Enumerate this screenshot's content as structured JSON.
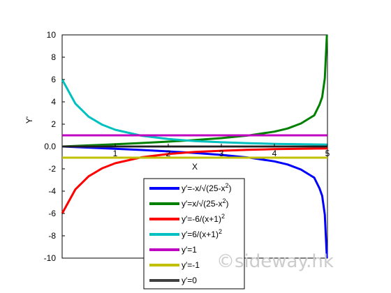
{
  "chart_data": {
    "type": "line",
    "title": "",
    "xlabel": "X",
    "ylabel": "Y'",
    "xlim": [
      0,
      5
    ],
    "ylim": [
      -10,
      10
    ],
    "x_ticks": [
      1,
      2,
      3,
      4,
      5
    ],
    "y_ticks": [
      10,
      8,
      6,
      4,
      2,
      0.0,
      -2,
      -4,
      -6,
      -8,
      -10
    ],
    "y_tick_labels": [
      "10",
      "8",
      "6",
      "4",
      "2",
      "0.0",
      "-2",
      "-4",
      "-6",
      "-8",
      "-10"
    ],
    "grid": false,
    "legend_position": "bottom-center",
    "series": [
      {
        "name": "y'=-x/√(25-x²)",
        "color": "#0000ff",
        "x": [
          0,
          0.5,
          1,
          1.5,
          2,
          2.5,
          3,
          3.5,
          4,
          4.25,
          4.5,
          4.75,
          4.85,
          4.9,
          4.95,
          4.98,
          4.99
        ],
        "y": [
          0,
          -0.1,
          -0.2,
          -0.31,
          -0.44,
          -0.58,
          -0.75,
          -0.98,
          -1.33,
          -1.61,
          -2.06,
          -2.79,
          -3.75,
          -4.41,
          -6.1,
          -9.1,
          -10
        ]
      },
      {
        "name": "y'=x/√(25-x²)",
        "color": "#008000",
        "x": [
          0,
          0.5,
          1,
          1.5,
          2,
          2.5,
          3,
          3.5,
          4,
          4.25,
          4.5,
          4.75,
          4.85,
          4.9,
          4.95,
          4.98,
          4.99
        ],
        "y": [
          0,
          0.1,
          0.2,
          0.31,
          0.44,
          0.58,
          0.75,
          0.98,
          1.33,
          1.61,
          2.06,
          2.79,
          3.75,
          4.41,
          6.1,
          9.1,
          10
        ]
      },
      {
        "name": "y'=-6/(x+1)²",
        "color": "#ff0000",
        "x": [
          0,
          0.25,
          0.5,
          0.75,
          1,
          1.5,
          2,
          2.5,
          3,
          3.5,
          4,
          4.5,
          5
        ],
        "y": [
          -6,
          -3.84,
          -2.67,
          -1.96,
          -1.5,
          -0.96,
          -0.67,
          -0.49,
          -0.38,
          -0.3,
          -0.24,
          -0.2,
          -0.17
        ]
      },
      {
        "name": "y'=6/(x+1)²",
        "color": "#00c0c0",
        "x": [
          0,
          0.25,
          0.5,
          0.75,
          1,
          1.5,
          2,
          2.5,
          3,
          3.5,
          4,
          4.5,
          5
        ],
        "y": [
          6,
          3.84,
          2.67,
          1.96,
          1.5,
          0.96,
          0.67,
          0.49,
          0.38,
          0.3,
          0.24,
          0.2,
          0.17
        ]
      },
      {
        "name": "y'=1",
        "color": "#c000c0",
        "x": [
          0,
          5
        ],
        "y": [
          1,
          1
        ]
      },
      {
        "name": "y'=-1",
        "color": "#c0c000",
        "x": [
          0,
          5
        ],
        "y": [
          -1,
          -1
        ]
      },
      {
        "name": "y'=0",
        "color": "#404040",
        "x": [
          0,
          5
        ],
        "y": [
          0,
          0
        ]
      }
    ],
    "legend_labels": [
      {
        "base": "y′=-x/√(25-x",
        "sup": "2",
        "tail": ")"
      },
      {
        "base": "y′=x/√(25-x",
        "sup": "2",
        "tail": ")"
      },
      {
        "base": "y′=-6/(x+1)",
        "sup": "2",
        "tail": ""
      },
      {
        "base": "y′=6/(x+1)",
        "sup": "2",
        "tail": ""
      },
      {
        "base": "y′=1",
        "sup": "",
        "tail": ""
      },
      {
        "base": "y′=-1",
        "sup": "",
        "tail": ""
      },
      {
        "base": "y′=0",
        "sup": "",
        "tail": ""
      }
    ]
  },
  "watermark": "©sideway.hk"
}
